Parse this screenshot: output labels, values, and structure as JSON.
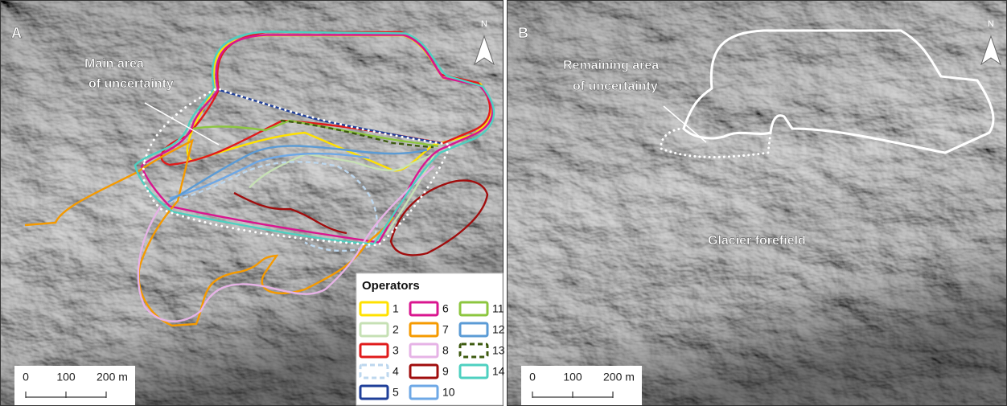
{
  "panels": [
    {
      "label": "A",
      "annotation": [
        "Main area",
        "of uncertainty"
      ],
      "north": "N",
      "scale": [
        "0",
        "100",
        "200 m"
      ]
    },
    {
      "label": "B",
      "annotation": [
        "Remaining area",
        "of uncertainty"
      ],
      "extra_label": "Glacier forefield",
      "north": "N",
      "scale": [
        "0",
        "100",
        "200 m"
      ]
    }
  ],
  "legend": {
    "title": "Operators",
    "items": [
      {
        "label": "1",
        "color": "#ffe100",
        "style": "solid"
      },
      {
        "label": "2",
        "color": "#c6e0b4",
        "style": "solid"
      },
      {
        "label": "3",
        "color": "#e01b1b",
        "style": "solid"
      },
      {
        "label": "4",
        "color": "#bdd7ee",
        "style": "dashed"
      },
      {
        "label": "5",
        "color": "#1f3f99",
        "style": "solid"
      },
      {
        "label": "6",
        "color": "#d9168f",
        "style": "solid"
      },
      {
        "label": "7",
        "color": "#f59a00",
        "style": "solid"
      },
      {
        "label": "8",
        "color": "#e6b3e6",
        "style": "solid"
      },
      {
        "label": "9",
        "color": "#a00d0d",
        "style": "solid"
      },
      {
        "label": "10",
        "color": "#6ea8e6",
        "style": "solid"
      },
      {
        "label": "11",
        "color": "#8cc63f",
        "style": "solid"
      },
      {
        "label": "12",
        "color": "#5b9bd5",
        "style": "solid"
      },
      {
        "label": "13",
        "color": "#3d5a0f",
        "style": "dashed"
      },
      {
        "label": "14",
        "color": "#4ed0c0",
        "style": "solid"
      }
    ]
  }
}
